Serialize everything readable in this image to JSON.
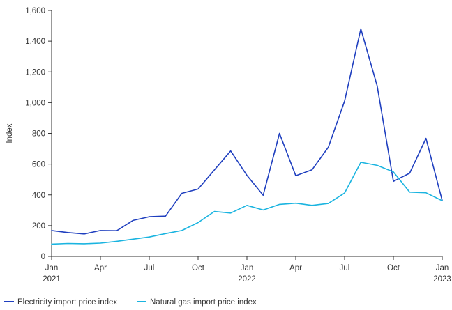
{
  "chart_data": {
    "type": "line",
    "title": "",
    "xlabel": "",
    "ylabel": "Index",
    "ylim": [
      0,
      1600
    ],
    "yticks": [
      0,
      200,
      400,
      600,
      800,
      1000,
      1200,
      1400,
      1600
    ],
    "ytick_labels": [
      "0",
      "200",
      "400",
      "600",
      "800",
      "1,000",
      "1,200",
      "1,400",
      "1,600"
    ],
    "x": [
      "2021-01",
      "2021-02",
      "2021-03",
      "2021-04",
      "2021-05",
      "2021-06",
      "2021-07",
      "2021-08",
      "2021-09",
      "2021-10",
      "2021-11",
      "2021-12",
      "2022-01",
      "2022-02",
      "2022-03",
      "2022-04",
      "2022-05",
      "2022-06",
      "2022-07",
      "2022-08",
      "2022-09",
      "2022-10",
      "2022-11",
      "2022-12",
      "2023-01"
    ],
    "xticks": [
      {
        "index": 0,
        "label": "Jan",
        "sublabel": "2021"
      },
      {
        "index": 3,
        "label": "Apr",
        "sublabel": ""
      },
      {
        "index": 6,
        "label": "Jul",
        "sublabel": ""
      },
      {
        "index": 9,
        "label": "Oct",
        "sublabel": ""
      },
      {
        "index": 12,
        "label": "Jan",
        "sublabel": "2022"
      },
      {
        "index": 15,
        "label": "Apr",
        "sublabel": ""
      },
      {
        "index": 18,
        "label": "Jul",
        "sublabel": ""
      },
      {
        "index": 21,
        "label": "Oct",
        "sublabel": ""
      },
      {
        "index": 24,
        "label": "Jan",
        "sublabel": "2023"
      }
    ],
    "grid": false,
    "legend_position": "bottom-left",
    "series": [
      {
        "name": "Electricity import price index",
        "color": "#1f3fbf",
        "values": [
          168,
          155,
          146,
          168,
          167,
          234,
          258,
          262,
          410,
          438,
          562,
          686,
          527,
          398,
          800,
          525,
          563,
          710,
          1010,
          1480,
          1110,
          488,
          541,
          768,
          363
        ]
      },
      {
        "name": "Natural gas import price index",
        "color": "#1ab4e0",
        "values": [
          80,
          84,
          82,
          86,
          98,
          112,
          126,
          148,
          168,
          220,
          292,
          282,
          332,
          302,
          338,
          346,
          332,
          344,
          412,
          612,
          592,
          550,
          418,
          414,
          362
        ]
      }
    ]
  }
}
